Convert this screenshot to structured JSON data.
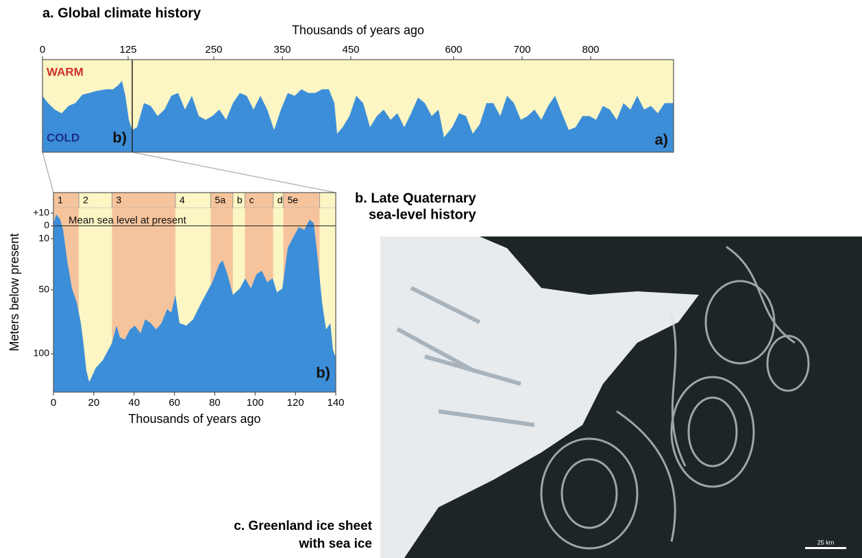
{
  "chart_data": [
    {
      "type": "area",
      "title": "a. Global climate history",
      "xlabel": "Thousands of years ago",
      "xlim": [
        0,
        921
      ],
      "xticks": [
        0,
        125,
        250,
        350,
        450,
        600,
        700,
        800
      ],
      "ylim": [
        0,
        100
      ],
      "color": "#3d8ed8",
      "background": "#fbf6c4",
      "divider_x": 131,
      "annotations": [
        {
          "text": "WARM",
          "color": "#d0302a"
        },
        {
          "text": "COLD",
          "color": "#1c2f8a"
        },
        {
          "text": "b)",
          "color": "#111111"
        },
        {
          "text": "a)",
          "color": "#111111"
        }
      ],
      "x": [
        0,
        8,
        18,
        28,
        38,
        48,
        58,
        68,
        78,
        93,
        103,
        110,
        116,
        121,
        126,
        131,
        138,
        148,
        158,
        168,
        178,
        188,
        198,
        208,
        218,
        228,
        238,
        248,
        258,
        268,
        278,
        288,
        298,
        308,
        318,
        328,
        338,
        348,
        358,
        368,
        378,
        388,
        398,
        408,
        418,
        426,
        430,
        438,
        448,
        458,
        468,
        478,
        488,
        498,
        508,
        518,
        528,
        538,
        548,
        558,
        568,
        578,
        586,
        598,
        608,
        618,
        628,
        638,
        648,
        658,
        668,
        678,
        688,
        698,
        708,
        718,
        728,
        738,
        748,
        758,
        768,
        778,
        788,
        798,
        808,
        818,
        828,
        838,
        848,
        858,
        868,
        878,
        888,
        898,
        908,
        921
      ],
      "values": [
        61,
        53,
        46,
        42,
        50,
        53,
        62,
        64,
        66,
        68,
        68,
        72,
        77,
        61,
        35,
        24,
        27,
        53,
        50,
        39,
        46,
        61,
        64,
        46,
        61,
        39,
        35,
        39,
        46,
        35,
        53,
        64,
        61,
        46,
        61,
        46,
        24,
        46,
        64,
        61,
        68,
        64,
        64,
        68,
        68,
        53,
        20,
        27,
        39,
        61,
        53,
        27,
        39,
        46,
        35,
        42,
        27,
        42,
        59,
        53,
        39,
        46,
        16,
        27,
        42,
        39,
        20,
        30,
        53,
        53,
        39,
        61,
        53,
        35,
        39,
        46,
        35,
        50,
        61,
        42,
        24,
        27,
        39,
        39,
        35,
        50,
        46,
        35,
        53,
        46,
        61,
        46,
        50,
        42,
        53,
        53
      ]
    },
    {
      "type": "area",
      "title": [
        "b. Late Quaternary",
        "sea-level history"
      ],
      "xlabel": "Thousands of years ago",
      "ylabel": "Meters below present",
      "xlim": [
        0,
        140
      ],
      "xticks": [
        0,
        20,
        40,
        60,
        80,
        100,
        120,
        140
      ],
      "ylim": [
        130,
        -26
      ],
      "yticks": [
        {
          "value": -10,
          "label": "+10"
        },
        0,
        10,
        50,
        100
      ],
      "color": "#3d8ed8",
      "reference_line": 0,
      "annotations": [
        {
          "text": "Mean sea level at present",
          "color": "#111111"
        },
        {
          "text": "b)",
          "color": "#111111"
        }
      ],
      "bands": [
        {
          "label": "1",
          "start": 0,
          "end": 12.6,
          "color": "#f6c49c"
        },
        {
          "label": "2",
          "start": 12.6,
          "end": 29,
          "color": "#fbf6c4"
        },
        {
          "label": "3",
          "start": 29,
          "end": 60.5,
          "color": "#f6c49c"
        },
        {
          "label": "4",
          "start": 60.5,
          "end": 78,
          "color": "#fbf6c4"
        },
        {
          "label": "5a",
          "start": 78,
          "end": 89,
          "color": "#f6c49c"
        },
        {
          "label": "b",
          "start": 89,
          "end": 95,
          "color": "#fbf6c4"
        },
        {
          "label": "c",
          "start": 95,
          "end": 109,
          "color": "#f6c49c"
        },
        {
          "label": "d",
          "start": 109,
          "end": 114,
          "color": "#fbf6c4"
        },
        {
          "label": "5e",
          "start": 114,
          "end": 132,
          "color": "#f6c49c"
        },
        {
          "label": null,
          "start": 132,
          "end": 140,
          "color": "#fbf6c4"
        }
      ],
      "x": [
        0,
        1.4,
        3.4,
        4.8,
        6.8,
        9.2,
        11.6,
        13.6,
        14.9,
        16.3,
        17.7,
        19,
        21,
        24.5,
        27.2,
        28.9,
        31.3,
        32.9,
        35.3,
        38,
        40.4,
        43.2,
        45.5,
        48.2,
        51,
        53.6,
        56.4,
        58.4,
        60.5,
        62.5,
        65.9,
        69.3,
        72.7,
        75.4,
        78.8,
        82.2,
        83.9,
        86.3,
        89,
        92.4,
        95.1,
        97.9,
        100.6,
        103.3,
        106,
        108.7,
        110.8,
        113.5,
        116.2,
        118.9,
        121.6,
        124.4,
        127.1,
        129.1,
        131.2,
        133.2,
        135.2,
        137.3,
        138.6,
        140
      ],
      "values": [
        -2,
        -9,
        -5,
        3,
        27,
        49,
        60,
        76,
        92,
        113,
        122,
        118,
        111,
        105,
        97,
        92,
        78,
        87,
        89,
        81,
        78,
        84,
        73,
        76,
        81,
        76,
        65,
        68,
        54,
        76,
        78,
        73,
        62,
        54,
        44,
        30,
        27,
        38,
        54,
        49,
        41,
        49,
        38,
        35,
        44,
        41,
        52,
        49,
        17,
        9,
        1,
        3,
        -5,
        -2,
        27,
        60,
        81,
        76,
        97,
        103
      ]
    }
  ],
  "image_panel": {
    "title": [
      "c. Greenland ice sheet",
      "with sea ice"
    ],
    "scale_label": "25 km"
  }
}
